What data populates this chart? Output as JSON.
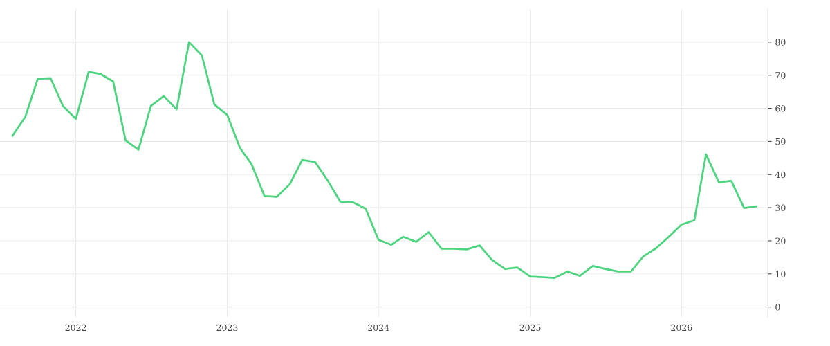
{
  "chart_data": {
    "type": "line",
    "x": [
      "2021-08",
      "2021-09",
      "2021-10",
      "2021-11",
      "2021-12",
      "2022-01",
      "2022-02",
      "2022-03",
      "2022-04",
      "2022-05",
      "2022-06",
      "2022-07",
      "2022-08",
      "2022-09",
      "2022-10",
      "2022-11",
      "2022-12",
      "2023-01",
      "2023-02",
      "2023-03",
      "2023-04",
      "2023-05",
      "2023-06",
      "2023-07",
      "2023-08",
      "2023-09",
      "2023-10",
      "2023-11",
      "2023-12",
      "2024-01",
      "2024-02",
      "2024-03",
      "2024-04",
      "2024-05",
      "2024-06",
      "2024-07",
      "2024-08",
      "2024-09",
      "2024-10",
      "2024-11",
      "2024-12",
      "2025-01",
      "2025-02",
      "2025-03",
      "2025-04",
      "2025-05",
      "2025-06",
      "2025-07",
      "2025-08",
      "2025-09",
      "2025-10",
      "2025-11",
      "2025-12",
      "2026-01",
      "2026-02",
      "2026-03",
      "2026-04",
      "2026-05",
      "2026-06",
      "2026-07"
    ],
    "series": [
      {
        "color": "#4cd47f",
        "values": [
          51.7,
          57.4,
          68.9,
          69.1,
          60.7,
          56.8,
          71.0,
          70.4,
          68.1,
          50.3,
          47.5,
          60.7,
          63.7,
          59.7,
          80.0,
          76.0,
          61.2,
          58.0,
          48.0,
          43.1,
          33.5,
          33.3,
          37.1,
          44.4,
          43.8,
          38.1,
          31.8,
          31.6,
          29.7,
          20.3,
          18.8,
          21.2,
          19.7,
          22.6,
          17.6,
          17.6,
          17.4,
          18.6,
          14.2,
          11.5,
          11.9,
          9.2,
          9.0,
          8.8,
          10.7,
          9.4,
          12.4,
          11.5,
          10.7,
          10.7,
          15.3,
          17.8,
          21.2,
          24.9,
          26.2,
          46.1,
          37.7,
          38.1,
          29.9,
          30.4
        ]
      }
    ],
    "xlim": [
      "2021-07-02",
      "2026-07-28"
    ],
    "xticks": [
      "2022",
      "2023",
      "2024",
      "2025",
      "2026"
    ],
    "ylim": [
      -3,
      90
    ],
    "yticks": [
      0,
      10,
      20,
      30,
      40,
      50,
      60,
      70,
      80
    ],
    "grid": true,
    "legend": false,
    "marker": "none",
    "line_style": "solid"
  }
}
